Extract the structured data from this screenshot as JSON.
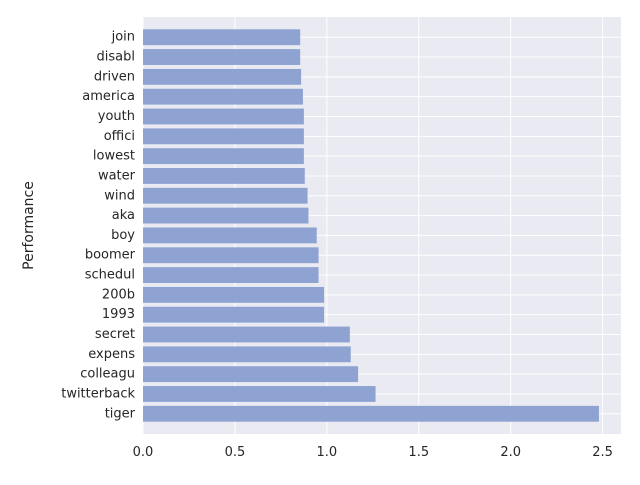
{
  "chart_data": {
    "type": "bar",
    "orientation": "horizontal",
    "ylabel": "Performance",
    "xlabel": "",
    "xlim": [
      0,
      2.6
    ],
    "xticks": [
      0.0,
      0.5,
      1.0,
      1.5,
      2.0,
      2.5
    ],
    "xtick_labels": [
      "0.0",
      "0.5",
      "1.0",
      "1.5",
      "2.0",
      "2.5"
    ],
    "grid": true,
    "bar_color": "#8fa3d3",
    "background_color": "#eaeaf2",
    "grid_color": "#ffffff",
    "categories": [
      "tiger",
      "twitterback",
      "colleagu",
      "expens",
      "secret",
      "1993",
      "200b",
      "schedul",
      "boomer",
      "boy",
      "aka",
      "wind",
      "water",
      "lowest",
      "offici",
      "youth",
      "america",
      "driven",
      "disabl",
      "join"
    ],
    "values": [
      2.48,
      1.265,
      1.17,
      1.13,
      1.125,
      0.985,
      0.985,
      0.955,
      0.955,
      0.945,
      0.9,
      0.895,
      0.88,
      0.875,
      0.875,
      0.875,
      0.87,
      0.86,
      0.855,
      0.855
    ]
  }
}
